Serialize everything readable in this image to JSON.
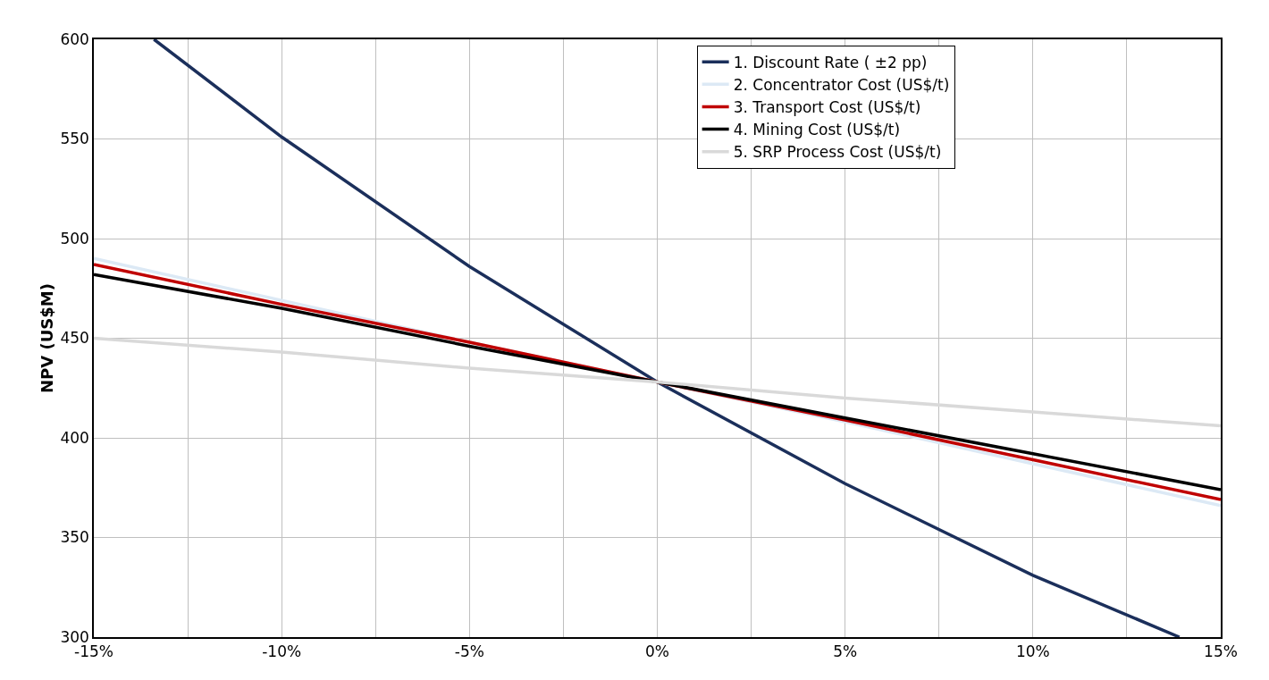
{
  "chart_data": {
    "type": "line",
    "ylabel": "NPV (US$M)",
    "xlim": [
      -15,
      15
    ],
    "ylim": [
      300,
      600
    ],
    "xticks": [
      {
        "value": -15,
        "label": "-15%"
      },
      {
        "value": -12.5,
        "label": null
      },
      {
        "value": -10,
        "label": "-10%"
      },
      {
        "value": -7.5,
        "label": null
      },
      {
        "value": -5,
        "label": "-5%"
      },
      {
        "value": -2.5,
        "label": null
      },
      {
        "value": 0,
        "label": "0%"
      },
      {
        "value": 2.5,
        "label": null
      },
      {
        "value": 5,
        "label": "5%"
      },
      {
        "value": 7.5,
        "label": null
      },
      {
        "value": 10,
        "label": "10%"
      },
      {
        "value": 12.5,
        "label": null
      },
      {
        "value": 15,
        "label": "15%"
      }
    ],
    "yticks": [
      300,
      350,
      400,
      450,
      500,
      550,
      600
    ],
    "x": [
      -15,
      -10,
      -5,
      0,
      5,
      10,
      15
    ],
    "series": [
      {
        "name": "1. Discount Rate ( ±2 pp)",
        "color": "#1b2f5b",
        "x": [
          -13.4,
          -10,
          -5,
          0,
          5,
          10,
          13.9
        ],
        "values": [
          600,
          551,
          486,
          428,
          377,
          331,
          300
        ]
      },
      {
        "name": "2. Concentrator Cost (US$/t)",
        "color": "#dce9f5",
        "values": [
          490,
          469,
          448,
          428,
          408,
          387,
          366
        ]
      },
      {
        "name": "3. Transport Cost (US$/t)",
        "color": "#c00000",
        "values": [
          487,
          467,
          448,
          428,
          409,
          389,
          369
        ]
      },
      {
        "name": "4. Mining Cost (US$/t)",
        "color": "#000000",
        "values": [
          482,
          465,
          446,
          428,
          410,
          392,
          374
        ]
      },
      {
        "name": "5. SRP Process Cost (US$/t)",
        "color": "#d9d9d9",
        "values": [
          450,
          443,
          435,
          428,
          420,
          413,
          406
        ]
      }
    ],
    "grid": true,
    "legend": "top right",
    "marker": "none",
    "line_style": "solid"
  }
}
